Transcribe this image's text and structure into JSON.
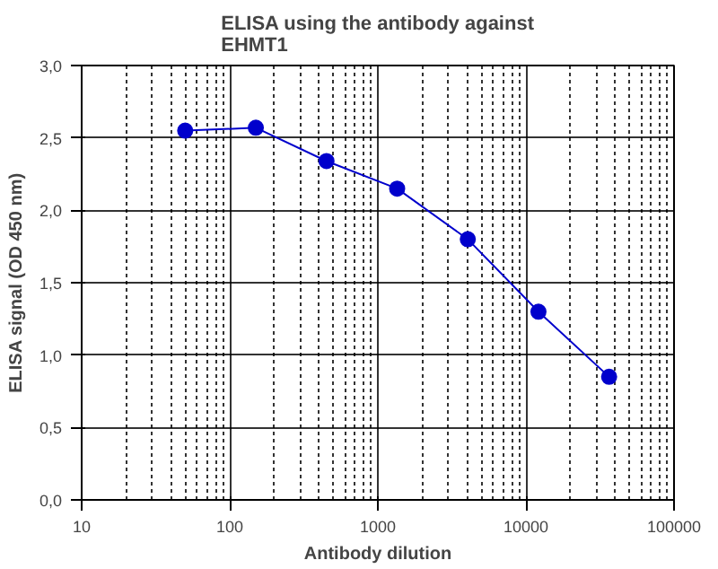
{
  "chart_data": {
    "type": "line",
    "title": "ELISA using the antibody against\nEHMT1",
    "xlabel": "Antibody dilution",
    "ylabel": "ELISA signal (OD 450 nm)",
    "x": [
      50,
      150,
      450,
      1350,
      4050,
      12150,
      36450
    ],
    "series": [
      {
        "color": "#0000cc",
        "values": [
          2.55,
          2.57,
          2.34,
          2.15,
          1.8,
          1.3,
          0.85
        ]
      }
    ],
    "log": "x",
    "xlim": [
      10,
      100000
    ],
    "xticks": [
      10,
      100,
      1000,
      10000,
      100000
    ],
    "ylim": [
      0,
      3
    ],
    "yticks": [
      {
        "value": 0,
        "label": "0,0"
      },
      {
        "value": 0.5,
        "label": "0,5"
      },
      {
        "value": 1,
        "label": "1,0"
      },
      {
        "value": 1.5,
        "label": "1,5"
      },
      {
        "value": 2,
        "label": "2,0"
      },
      {
        "value": 2.5,
        "label": "2,5"
      },
      {
        "value": 3,
        "label": "3,0"
      }
    ],
    "grid": true,
    "marker": "circle",
    "line_style": "solid"
  }
}
